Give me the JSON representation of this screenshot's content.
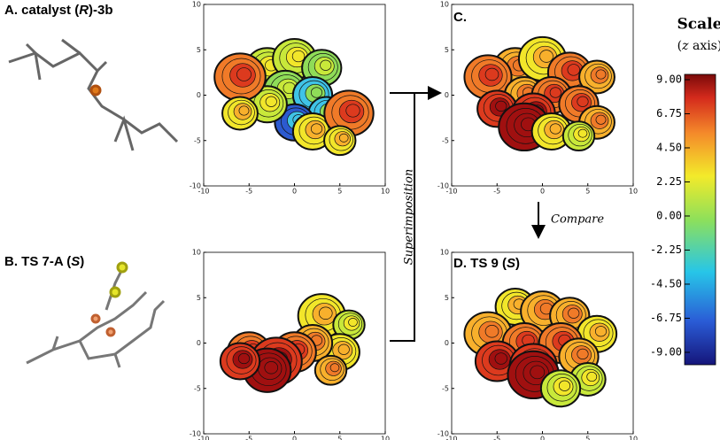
{
  "panels": [
    {
      "parts": [
        "A. catalyst (",
        "R",
        ")-3b"
      ]
    },
    {
      "parts": [
        "B. TS 7-A (",
        "S",
        ")"
      ]
    },
    {
      "parts": [
        "C."
      ]
    },
    {
      "parts": [
        "D. TS 9 (",
        "S",
        ")"
      ]
    }
  ],
  "axes": {
    "xlim": [
      -10,
      10
    ],
    "ylim": [
      -10,
      10
    ],
    "xticks": [
      -10,
      -5,
      0,
      5,
      10
    ],
    "yticks": [
      -10,
      -5,
      0,
      5,
      10
    ]
  },
  "arrows": {
    "superimposition": "Superimposition",
    "compare": "Compare"
  },
  "colorbar": {
    "title": "Scale",
    "subtitle_parts": [
      "(",
      "z",
      " axis)"
    ],
    "lim": [
      -9.82,
      9.35
    ],
    "ticks": [
      {
        "value": 9,
        "label": "9.00"
      },
      {
        "value": 6.75,
        "label": "6.75"
      },
      {
        "value": 4.5,
        "label": "4.50"
      },
      {
        "value": 2.25,
        "label": "2.25"
      },
      {
        "value": 0,
        "label": "0.00"
      },
      {
        "value": -2.25,
        "label": "-2.25"
      },
      {
        "value": -4.5,
        "label": "-4.50"
      },
      {
        "value": -6.75,
        "label": "-6.75"
      },
      {
        "value": -9,
        "label": "-9.00"
      }
    ]
  }
}
